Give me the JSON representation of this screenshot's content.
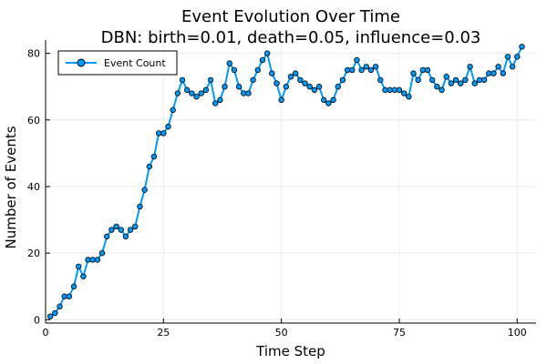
{
  "chart_data": {
    "type": "line",
    "title": "Event Evolution Over Time",
    "subtitle": "DBN: birth=0.01, death=0.05, influence=0.03",
    "xlabel": "Time Step",
    "ylabel": "Number of Events",
    "xlim": [
      0,
      104
    ],
    "ylim": [
      -1,
      84
    ],
    "xticks": [
      0,
      25,
      50,
      75,
      100
    ],
    "yticks": [
      0,
      20,
      40,
      60,
      80
    ],
    "grid": true,
    "legend_position": "top-left",
    "series_color": "#009AFA",
    "marker_fill": "#009AFA",
    "marker_stroke": "#000000",
    "series": [
      {
        "name": "Event Count",
        "x": [
          1,
          2,
          3,
          4,
          5,
          6,
          7,
          8,
          9,
          10,
          11,
          12,
          13,
          14,
          15,
          16,
          17,
          18,
          19,
          20,
          21,
          22,
          23,
          24,
          25,
          26,
          27,
          28,
          29,
          30,
          31,
          32,
          33,
          34,
          35,
          36,
          37,
          38,
          39,
          40,
          41,
          42,
          43,
          44,
          45,
          46,
          47,
          48,
          49,
          50,
          51,
          52,
          53,
          54,
          55,
          56,
          57,
          58,
          59,
          60,
          61,
          62,
          63,
          64,
          65,
          66,
          67,
          68,
          69,
          70,
          71,
          72,
          73,
          74,
          75,
          76,
          77,
          78,
          79,
          80,
          81,
          82,
          83,
          84,
          85,
          86,
          87,
          88,
          89,
          90,
          91,
          92,
          93,
          94,
          95,
          96,
          97,
          98,
          99,
          100,
          101
        ],
        "y": [
          1,
          2,
          4,
          7,
          7,
          10,
          16,
          13,
          18,
          18,
          18,
          20,
          25,
          27,
          28,
          27,
          25,
          27,
          28,
          34,
          39,
          46,
          49,
          56,
          56,
          58,
          63,
          68,
          72,
          69,
          68,
          67,
          68,
          69,
          72,
          65,
          66,
          70,
          77,
          75,
          70,
          68,
          68,
          72,
          75,
          78,
          80,
          74,
          71,
          66,
          70,
          73,
          74,
          72,
          71,
          70,
          69,
          70,
          66,
          65,
          66,
          70,
          72,
          75,
          75,
          78,
          75,
          76,
          75,
          76,
          72,
          69,
          69,
          69,
          69,
          68,
          67,
          74,
          72,
          75,
          75,
          72,
          70,
          69,
          73,
          71,
          72,
          71,
          72,
          76,
          71,
          72,
          72,
          74,
          74,
          76,
          74,
          79,
          76,
          79,
          82
        ]
      }
    ]
  }
}
